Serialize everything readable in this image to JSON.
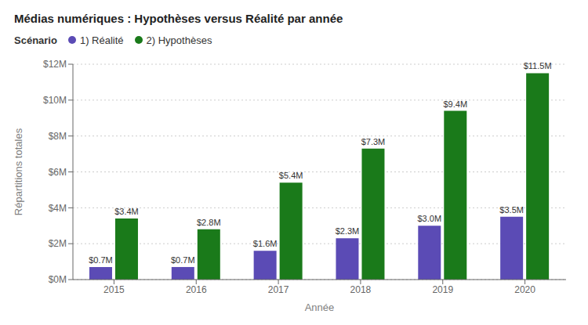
{
  "chart_data": {
    "type": "bar",
    "title": "Médias numériques : Hypothèses versus Réalité par année",
    "xlabel": "Année",
    "ylabel": "Répartitions totales",
    "legend_title": "Scénario",
    "categories": [
      "2015",
      "2016",
      "2017",
      "2018",
      "2019",
      "2020"
    ],
    "series": [
      {
        "name": "1) Réalité",
        "color": "#5B4BB5",
        "values": [
          0.7,
          0.7,
          1.6,
          2.3,
          3.0,
          3.5
        ],
        "value_labels": [
          "$0.7M",
          "$0.7M",
          "$1.6M",
          "$2.3M",
          "$3.0M",
          "$3.5M"
        ]
      },
      {
        "name": "2) Hypothèses",
        "color": "#1A7A1A",
        "values": [
          3.4,
          2.8,
          5.4,
          7.3,
          9.4,
          11.5
        ],
        "value_labels": [
          "$3.4M",
          "$2.8M",
          "$5.4M",
          "$7.3M",
          "$9.4M",
          "$11.5M"
        ]
      }
    ],
    "ylim": [
      0,
      12
    ],
    "yticks": [
      {
        "value": 0,
        "label": "$0M"
      },
      {
        "value": 2,
        "label": "$2M"
      },
      {
        "value": 4,
        "label": "$4M"
      },
      {
        "value": 6,
        "label": "$6M"
      },
      {
        "value": 8,
        "label": "$8M"
      },
      {
        "value": 10,
        "label": "$10M"
      },
      {
        "value": 12,
        "label": "$12M"
      }
    ],
    "grid": true,
    "legend": "top",
    "data_labels": true
  }
}
